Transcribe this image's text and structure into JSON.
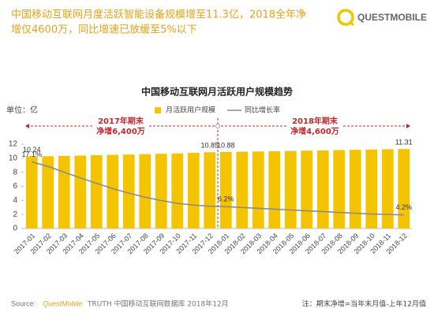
{
  "header": {
    "title_lines": [
      "中国移动互联网月度活跃智能设备规模增至11.3亿，2018全年净",
      "增仅4600万，同比增速已放缓至5%以下"
    ],
    "logo": "QUESTMOBILE"
  },
  "chart_data": {
    "type": "bar-line",
    "title": "中国移动互联网月活跃用户规模趋势",
    "unit": "单位：亿",
    "categories": [
      "2017-01",
      "2017-02",
      "2017-03",
      "2017-04",
      "2017-05",
      "2017-06",
      "2017-07",
      "2017-08",
      "2017-09",
      "2017-10",
      "2017-11",
      "2017-12",
      "2018-01",
      "2018-02",
      "2018-03",
      "2018-04",
      "2018-05",
      "2018-06",
      "2018-07",
      "2018-08",
      "2018-09",
      "2018-10",
      "2018-11",
      "2018-12"
    ],
    "series": [
      {
        "name": "月活跃用户规模",
        "color": "#f5c400",
        "kind": "bar",
        "values": [
          10.24,
          10.29,
          10.33,
          10.38,
          10.43,
          10.48,
          10.53,
          10.58,
          10.63,
          10.69,
          10.76,
          10.85,
          10.88,
          10.92,
          10.96,
          11.0,
          11.04,
          11.08,
          11.12,
          11.16,
          11.2,
          11.24,
          11.28,
          11.31
        ],
        "value_labels": [
          "10.24",
          null,
          null,
          null,
          null,
          null,
          null,
          null,
          null,
          null,
          null,
          "10.85",
          "10.88",
          null,
          null,
          null,
          null,
          null,
          null,
          null,
          null,
          null,
          null,
          "11.31"
        ]
      },
      {
        "name": "同比增长率",
        "color": "#8c8c8c",
        "kind": "line",
        "axis": "y2",
        "values": [
          17.1,
          16.0,
          14.6,
          13.2,
          11.9,
          10.6,
          9.5,
          8.5,
          7.7,
          7.0,
          6.6,
          6.3,
          6.2,
          6.0,
          5.8,
          5.6,
          5.4,
          5.2,
          5.0,
          4.8,
          4.6,
          4.4,
          4.3,
          4.2
        ],
        "value_labels": [
          "17.1%",
          null,
          null,
          null,
          null,
          null,
          null,
          null,
          null,
          null,
          null,
          null,
          "6.2%",
          null,
          null,
          null,
          null,
          null,
          null,
          null,
          null,
          null,
          null,
          "4.2%"
        ]
      }
    ],
    "ylim": [
      0,
      12
    ],
    "yticks": [
      0,
      2,
      4,
      6,
      8,
      10,
      12
    ],
    "y2lim": [
      0.9,
      21.4
    ],
    "grid": false,
    "annotations": [
      {
        "lines": [
          "2017年期末",
          "净增6,400万"
        ],
        "color": "#c0282d"
      },
      {
        "lines": [
          "2018年期末",
          "净增4,600万"
        ],
        "color": "#c0282d"
      }
    ]
  },
  "footer": {
    "source_label": "Source:",
    "source_brand": "QuestMobile",
    "source_text": "TRUTH 中国移动互联网数据库 2018年12月",
    "note": "注：期末净增=当年末月值-上年12月值"
  }
}
